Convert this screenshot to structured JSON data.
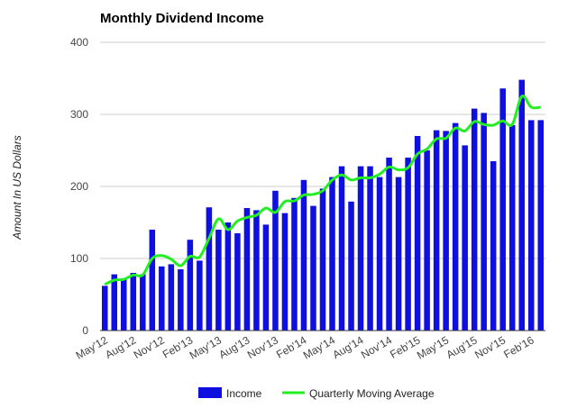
{
  "chart_data": {
    "type": "bar",
    "title": "Monthly Dividend Income",
    "xlabel": "",
    "ylabel": "Amount In US Dollars",
    "ylim": [
      0,
      400
    ],
    "yticks": [
      0,
      100,
      200,
      300,
      400
    ],
    "grid": true,
    "legend_position": "bottom",
    "categories": [
      "May'12",
      "Jun'12",
      "Jul'12",
      "Aug'12",
      "Sep'12",
      "Oct'12",
      "Nov'12",
      "Dec'12",
      "Jan'13",
      "Feb'13",
      "Mar'13",
      "Apr'13",
      "May'13",
      "Jun'13",
      "Jul'13",
      "Aug'13",
      "Sep'13",
      "Oct'13",
      "Nov'13",
      "Dec'13",
      "Jan'14",
      "Feb'14",
      "Mar'14",
      "Apr'14",
      "May'14",
      "Jun'14",
      "Jul'14",
      "Aug'14",
      "Sep'14",
      "Oct'14",
      "Nov'14",
      "Dec'14",
      "Jan'15",
      "Feb'15",
      "Mar'15",
      "Apr'15",
      "May'15",
      "Jun'15",
      "Jul'15",
      "Aug'15",
      "Sep'15",
      "Oct'15",
      "Nov'15",
      "Dec'15",
      "Jan'16",
      "Feb'16",
      "Mar'16"
    ],
    "tick_labels": [
      "May'12",
      "Aug'12",
      "Nov'12",
      "Feb'13",
      "May'13",
      "Aug'13",
      "Nov'13",
      "Feb'14",
      "May'14",
      "Aug'14",
      "Nov'14",
      "Feb'15",
      "May'15",
      "Aug'15",
      "Nov'15",
      "Feb'16"
    ],
    "series": [
      {
        "name": "Income",
        "type": "bar",
        "color": "#0f0fe0",
        "values": [
          62,
          78,
          72,
          80,
          78,
          140,
          89,
          92,
          85,
          126,
          97,
          171,
          140,
          150,
          135,
          170,
          167,
          147,
          194,
          163,
          184,
          209,
          173,
          197,
          213,
          228,
          179,
          228,
          228,
          213,
          240,
          213,
          240,
          270,
          250,
          278,
          277,
          288,
          257,
          308,
          302,
          235,
          336,
          285,
          348,
          292,
          292
        ]
      },
      {
        "name": "Quarterly Moving Average",
        "type": "line",
        "color": "#22ee22",
        "values": [
          64,
          70,
          71,
          77,
          77,
          100,
          104,
          99,
          90,
          103,
          102,
          128,
          155,
          140,
          152,
          157,
          160,
          170,
          164,
          179,
          180,
          188,
          189,
          194,
          209,
          216,
          209,
          212,
          212,
          217,
          227,
          223,
          226,
          245,
          252,
          266,
          267,
          281,
          277,
          290,
          286,
          285,
          291,
          286,
          325,
          310,
          310
        ]
      }
    ]
  }
}
